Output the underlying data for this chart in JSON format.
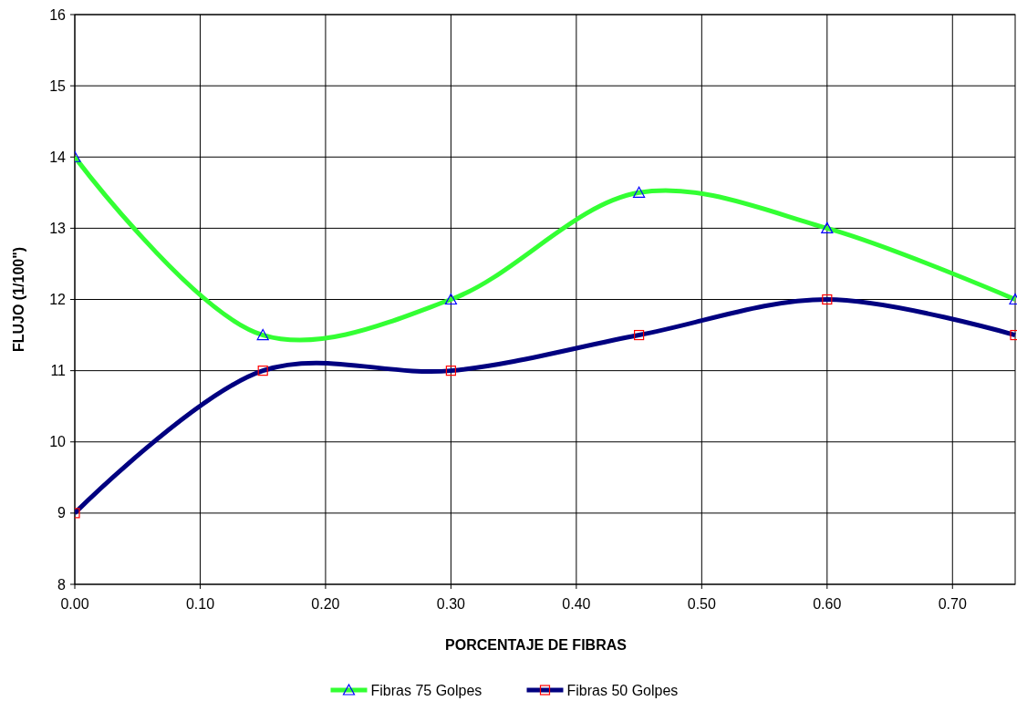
{
  "chart_data": {
    "type": "line",
    "xlabel": "PORCENTAJE DE FIBRAS",
    "ylabel": "FLUJO (1/100\")",
    "x": [
      0,
      0.15,
      0.3,
      0.45,
      0.6,
      0.75
    ],
    "series": [
      {
        "name": "Fibras 75 Golpes",
        "color": "#33ff33",
        "marker": "triangle",
        "values": [
          14,
          11.5,
          12,
          13.5,
          13,
          12
        ]
      },
      {
        "name": "Fibras 50 Golpes",
        "color": "#000080",
        "marker": "square",
        "values": [
          9,
          11,
          11,
          11.5,
          12,
          11.5
        ]
      }
    ],
    "xlim": [
      0,
      0.75
    ],
    "xticks": [
      {
        "value": 0,
        "label": "0.00"
      },
      {
        "value": 0.1,
        "label": "0.10"
      },
      {
        "value": 0.2,
        "label": "0.20"
      },
      {
        "value": 0.3,
        "label": "0.30"
      },
      {
        "value": 0.4,
        "label": "0.40"
      },
      {
        "value": 0.5,
        "label": "0.50"
      },
      {
        "value": 0.6,
        "label": "0.60"
      },
      {
        "value": 0.7,
        "label": "0.70"
      }
    ],
    "ylim": [
      8,
      16
    ],
    "yticks": [
      8,
      9,
      10,
      11,
      12,
      13,
      14,
      15,
      16
    ],
    "grid": true,
    "legend": "bottom",
    "line_style": "solid"
  }
}
